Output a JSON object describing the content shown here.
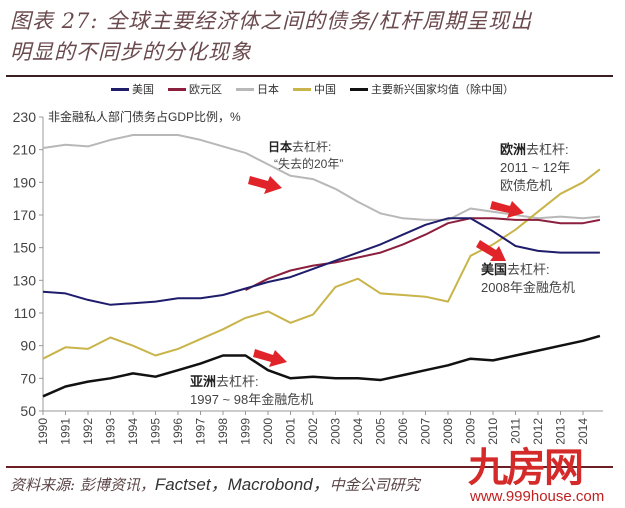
{
  "header": {
    "title_line1": "图表 27: 全球主要经济体之间的债务/杠杆周期呈现出",
    "title_line2": "明显的不同步的分化现象"
  },
  "legend": [
    {
      "label": "美国",
      "color": "#1f1d6b"
    },
    {
      "label": "欧元区",
      "color": "#8b1f3d"
    },
    {
      "label": "日本",
      "color": "#b8b8b8"
    },
    {
      "label": "中国",
      "color": "#c9b44a"
    },
    {
      "label": "主要新兴国家均值（除中国）",
      "color": "#111111"
    }
  ],
  "annotations": {
    "unit_label": "非金融私人部门债务占GDP比例，%",
    "japan_bold": "日本",
    "japan_rest": "去杠杆:",
    "japan_line2": "“失去的20年”",
    "europe_bold": "欧洲",
    "europe_rest": "去杠杆:",
    "europe_line2": "2011 ~ 12年",
    "europe_line3": "欧债危机",
    "us_bold": "美国",
    "us_rest": "去杠杆:",
    "us_line2": "2008年金融危机",
    "asia_bold": "亚洲",
    "asia_rest": "去杠杆:",
    "asia_line2": "1997 ~ 98年金融危机"
  },
  "footer": {
    "source_prefix": "资料来源: 彭博资讯，",
    "source_latin": "Factset，Macrobond，",
    "source_suffix": "中金公司研究",
    "watermark_logo": "九房网",
    "watermark_url": "www.999house.com"
  },
  "chart_data": {
    "type": "line",
    "title": "全球主要经济体之间的债务/杠杆周期呈现出明显的不同步的分化现象",
    "xlabel": "",
    "ylabel": "非金融私人部门债务占GDP比例，%",
    "ylim": [
      50,
      230
    ],
    "yticks": [
      50,
      70,
      90,
      110,
      130,
      150,
      170,
      190,
      210,
      230
    ],
    "xticks": [
      "1990",
      "1991",
      "1992",
      "1993",
      "1994",
      "1995",
      "1996",
      "1997",
      "1998",
      "1999",
      "2000",
      "2001",
      "2002",
      "2003",
      "2004",
      "2005",
      "2006",
      "2007",
      "2008",
      "2009",
      "2010",
      "2011",
      "2012",
      "2013",
      "2014"
    ],
    "grid": false,
    "legend_position": "top",
    "x": [
      1990,
      1991,
      1992,
      1993,
      1994,
      1995,
      1996,
      1997,
      1998,
      1999,
      2000,
      2001,
      2002,
      2003,
      2004,
      2005,
      2006,
      2007,
      2008,
      2009,
      2010,
      2011,
      2012,
      2013,
      2014,
      2014.75
    ],
    "series": [
      {
        "name": "美国",
        "color": "#1f1d6b",
        "values": [
          123,
          122,
          118,
          115,
          116,
          117,
          119,
          119,
          121,
          125,
          129,
          132,
          137,
          142,
          147,
          152,
          158,
          164,
          168,
          168,
          160,
          151,
          148,
          147,
          147,
          147
        ]
      },
      {
        "name": "欧元区",
        "color": "#8b1f3d",
        "values": [
          null,
          null,
          null,
          null,
          null,
          null,
          null,
          null,
          null,
          124,
          131,
          136,
          139,
          141,
          144,
          147,
          152,
          158,
          165,
          168,
          168,
          167,
          167,
          165,
          165,
          167
        ]
      },
      {
        "name": "日本",
        "color": "#b8b8b8",
        "values": [
          211,
          213,
          212,
          216,
          219,
          219,
          219,
          216,
          212,
          208,
          201,
          194,
          192,
          186,
          178,
          171,
          168,
          167,
          167,
          174,
          172,
          170,
          168,
          169,
          168,
          169
        ]
      },
      {
        "name": "中国",
        "color": "#c9b44a",
        "values": [
          82,
          89,
          88,
          95,
          90,
          84,
          88,
          94,
          100,
          107,
          111,
          104,
          109,
          126,
          131,
          122,
          121,
          120,
          117,
          145,
          152,
          161,
          172,
          183,
          190,
          198
        ]
      },
      {
        "name": "主要新兴国家均值（除中国）",
        "color": "#111111",
        "values": [
          59,
          65,
          68,
          70,
          73,
          71,
          75,
          79,
          84,
          84,
          75,
          70,
          71,
          70,
          70,
          69,
          72,
          75,
          78,
          82,
          81,
          84,
          87,
          90,
          93,
          96
        ]
      }
    ],
    "annotations": [
      {
        "text": "日本去杠杆: “失去的20年”"
      },
      {
        "text": "欧洲去杠杆: 2011~12年 欧债危机"
      },
      {
        "text": "美国去杠杆: 2008年金融危机"
      },
      {
        "text": "亚洲去杠杆: 1997~98年金融危机"
      }
    ]
  }
}
